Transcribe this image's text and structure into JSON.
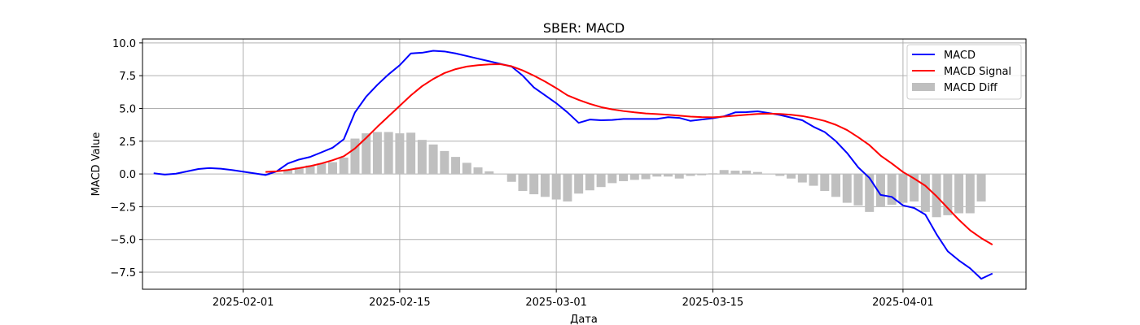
{
  "chart_data": {
    "type": "line",
    "title": "SBER: MACD",
    "xlabel": "Дата",
    "ylabel": "MACD Value",
    "x_tick_labels": [
      "2025-02-01",
      "2025-02-15",
      "2025-03-01",
      "2025-03-15",
      "2025-04-01"
    ],
    "x_tick_dates": [
      "2025-02-01",
      "2025-02-15",
      "2025-03-01",
      "2025-03-15",
      "2025-04-01"
    ],
    "xlim": [
      "2025-01-23",
      "2025-04-12"
    ],
    "ylim": [
      -8.8,
      10.3
    ],
    "y_ticks": [
      10.0,
      7.5,
      5.0,
      2.5,
      0.0,
      -2.5,
      -5.0,
      -7.5
    ],
    "y_tick_labels": [
      "10.0",
      "7.5",
      "5.0",
      "2.5",
      "0.0",
      "−2.5",
      "−5.0",
      "−7.5"
    ],
    "grid": true,
    "legend_position": "top-right",
    "series": [
      {
        "name": "MACD",
        "type": "line",
        "color": "#0000ff",
        "points": [
          [
            "2025-01-24",
            0.05
          ],
          [
            "2025-01-25",
            -0.05
          ],
          [
            "2025-01-26",
            0.02
          ],
          [
            "2025-01-27",
            0.2
          ],
          [
            "2025-01-28",
            0.38
          ],
          [
            "2025-01-29",
            0.45
          ],
          [
            "2025-01-30",
            0.4
          ],
          [
            "2025-01-31",
            0.3
          ],
          [
            "2025-02-03",
            -0.08
          ],
          [
            "2025-02-04",
            0.2
          ],
          [
            "2025-02-05",
            0.8
          ],
          [
            "2025-02-06",
            1.1
          ],
          [
            "2025-02-07",
            1.3
          ],
          [
            "2025-02-08",
            1.65
          ],
          [
            "2025-02-09",
            2.0
          ],
          [
            "2025-02-10",
            2.65
          ],
          [
            "2025-02-11",
            4.7
          ],
          [
            "2025-02-12",
            5.9
          ],
          [
            "2025-02-13",
            6.8
          ],
          [
            "2025-02-14",
            7.6
          ],
          [
            "2025-02-15",
            8.3
          ],
          [
            "2025-02-16",
            9.2
          ],
          [
            "2025-02-17",
            9.25
          ],
          [
            "2025-02-18",
            9.4
          ],
          [
            "2025-02-19",
            9.35
          ],
          [
            "2025-02-20",
            9.2
          ],
          [
            "2025-02-21",
            9.0
          ],
          [
            "2025-02-22",
            8.8
          ],
          [
            "2025-02-23",
            8.6
          ],
          [
            "2025-02-24",
            8.4
          ],
          [
            "2025-02-25",
            8.2
          ],
          [
            "2025-02-26",
            7.5
          ],
          [
            "2025-02-27",
            6.6
          ],
          [
            "2025-02-28",
            6.0
          ],
          [
            "2025-03-01",
            5.4
          ],
          [
            "2025-03-02",
            4.7
          ],
          [
            "2025-03-03",
            3.9
          ],
          [
            "2025-03-04",
            4.15
          ],
          [
            "2025-03-05",
            4.1
          ],
          [
            "2025-03-06",
            4.12
          ],
          [
            "2025-03-07",
            4.2
          ],
          [
            "2025-03-08",
            4.2
          ],
          [
            "2025-03-09",
            4.2
          ],
          [
            "2025-03-10",
            4.2
          ],
          [
            "2025-03-11",
            4.33
          ],
          [
            "2025-03-12",
            4.28
          ],
          [
            "2025-03-13",
            4.05
          ],
          [
            "2025-03-14",
            4.15
          ],
          [
            "2025-03-15",
            4.25
          ],
          [
            "2025-03-16",
            4.4
          ],
          [
            "2025-03-17",
            4.7
          ],
          [
            "2025-03-18",
            4.72
          ],
          [
            "2025-03-19",
            4.78
          ],
          [
            "2025-03-20",
            4.65
          ],
          [
            "2025-03-21",
            4.5
          ],
          [
            "2025-03-22",
            4.3
          ],
          [
            "2025-03-23",
            4.1
          ],
          [
            "2025-03-24",
            3.6
          ],
          [
            "2025-03-25",
            3.2
          ],
          [
            "2025-03-26",
            2.5
          ],
          [
            "2025-03-27",
            1.6
          ],
          [
            "2025-03-28",
            0.5
          ],
          [
            "2025-03-29",
            -0.3
          ],
          [
            "2025-03-30",
            -1.6
          ],
          [
            "2025-03-31",
            -1.75
          ],
          [
            "2025-04-01",
            -2.4
          ],
          [
            "2025-04-02",
            -2.6
          ],
          [
            "2025-04-03",
            -3.1
          ],
          [
            "2025-04-04",
            -4.6
          ],
          [
            "2025-04-05",
            -5.9
          ],
          [
            "2025-04-06",
            -6.6
          ],
          [
            "2025-04-07",
            -7.2
          ],
          [
            "2025-04-08",
            -8.0
          ],
          [
            "2025-04-09",
            -7.6
          ]
        ]
      },
      {
        "name": "MACD Signal",
        "type": "line",
        "color": "#ff0000",
        "points": [
          [
            "2025-02-03",
            0.15
          ],
          [
            "2025-02-04",
            0.2
          ],
          [
            "2025-02-05",
            0.3
          ],
          [
            "2025-02-06",
            0.45
          ],
          [
            "2025-02-07",
            0.6
          ],
          [
            "2025-02-08",
            0.8
          ],
          [
            "2025-02-09",
            1.05
          ],
          [
            "2025-02-10",
            1.35
          ],
          [
            "2025-02-11",
            1.95
          ],
          [
            "2025-02-12",
            2.75
          ],
          [
            "2025-02-13",
            3.6
          ],
          [
            "2025-02-14",
            4.4
          ],
          [
            "2025-02-15",
            5.2
          ],
          [
            "2025-02-16",
            6.0
          ],
          [
            "2025-02-17",
            6.7
          ],
          [
            "2025-02-18",
            7.25
          ],
          [
            "2025-02-19",
            7.7
          ],
          [
            "2025-02-20",
            8.0
          ],
          [
            "2025-02-21",
            8.2
          ],
          [
            "2025-02-22",
            8.3
          ],
          [
            "2025-02-23",
            8.36
          ],
          [
            "2025-02-24",
            8.38
          ],
          [
            "2025-02-25",
            8.22
          ],
          [
            "2025-02-26",
            7.9
          ],
          [
            "2025-02-27",
            7.5
          ],
          [
            "2025-02-28",
            7.05
          ],
          [
            "2025-03-01",
            6.55
          ],
          [
            "2025-03-02",
            6.0
          ],
          [
            "2025-03-03",
            5.65
          ],
          [
            "2025-03-04",
            5.35
          ],
          [
            "2025-03-05",
            5.1
          ],
          [
            "2025-03-06",
            4.93
          ],
          [
            "2025-03-07",
            4.8
          ],
          [
            "2025-03-08",
            4.7
          ],
          [
            "2025-03-09",
            4.62
          ],
          [
            "2025-03-10",
            4.57
          ],
          [
            "2025-03-11",
            4.52
          ],
          [
            "2025-03-12",
            4.45
          ],
          [
            "2025-03-13",
            4.38
          ],
          [
            "2025-03-14",
            4.34
          ],
          [
            "2025-03-15",
            4.32
          ],
          [
            "2025-03-16",
            4.38
          ],
          [
            "2025-03-17",
            4.45
          ],
          [
            "2025-03-18",
            4.52
          ],
          [
            "2025-03-19",
            4.58
          ],
          [
            "2025-03-20",
            4.6
          ],
          [
            "2025-03-21",
            4.58
          ],
          [
            "2025-03-22",
            4.52
          ],
          [
            "2025-03-23",
            4.42
          ],
          [
            "2025-03-24",
            4.25
          ],
          [
            "2025-03-25",
            4.05
          ],
          [
            "2025-03-26",
            3.75
          ],
          [
            "2025-03-27",
            3.35
          ],
          [
            "2025-03-28",
            2.8
          ],
          [
            "2025-03-29",
            2.2
          ],
          [
            "2025-03-30",
            1.4
          ],
          [
            "2025-03-31",
            0.8
          ],
          [
            "2025-04-01",
            0.15
          ],
          [
            "2025-04-02",
            -0.35
          ],
          [
            "2025-04-03",
            -0.9
          ],
          [
            "2025-04-04",
            -1.7
          ],
          [
            "2025-04-05",
            -2.6
          ],
          [
            "2025-04-06",
            -3.5
          ],
          [
            "2025-04-07",
            -4.3
          ],
          [
            "2025-04-08",
            -4.9
          ],
          [
            "2025-04-09",
            -5.4
          ]
        ]
      },
      {
        "name": "MACD Diff",
        "type": "bar",
        "color": "#bfbfbf",
        "points": [
          [
            "2025-02-03",
            -0.1
          ],
          [
            "2025-02-04",
            0.05
          ],
          [
            "2025-02-05",
            0.3
          ],
          [
            "2025-02-06",
            0.5
          ],
          [
            "2025-02-07",
            0.65
          ],
          [
            "2025-02-08",
            0.8
          ],
          [
            "2025-02-09",
            0.9
          ],
          [
            "2025-02-10",
            1.25
          ],
          [
            "2025-02-11",
            2.7
          ],
          [
            "2025-02-12",
            3.1
          ],
          [
            "2025-02-13",
            3.2
          ],
          [
            "2025-02-14",
            3.2
          ],
          [
            "2025-02-15",
            3.1
          ],
          [
            "2025-02-16",
            3.15
          ],
          [
            "2025-02-17",
            2.6
          ],
          [
            "2025-02-18",
            2.25
          ],
          [
            "2025-02-19",
            1.75
          ],
          [
            "2025-02-20",
            1.3
          ],
          [
            "2025-02-21",
            0.85
          ],
          [
            "2025-02-22",
            0.5
          ],
          [
            "2025-02-23",
            0.2
          ],
          [
            "2025-02-24",
            0.0
          ],
          [
            "2025-02-25",
            -0.6
          ],
          [
            "2025-02-26",
            -1.3
          ],
          [
            "2025-02-27",
            -1.55
          ],
          [
            "2025-02-28",
            -1.75
          ],
          [
            "2025-03-01",
            -1.95
          ],
          [
            "2025-03-02",
            -2.1
          ],
          [
            "2025-03-03",
            -1.5
          ],
          [
            "2025-03-04",
            -1.25
          ],
          [
            "2025-03-05",
            -1.0
          ],
          [
            "2025-03-06",
            -0.7
          ],
          [
            "2025-03-07",
            -0.55
          ],
          [
            "2025-03-08",
            -0.45
          ],
          [
            "2025-03-09",
            -0.4
          ],
          [
            "2025-03-10",
            -0.2
          ],
          [
            "2025-03-11",
            -0.2
          ],
          [
            "2025-03-12",
            -0.35
          ],
          [
            "2025-03-13",
            -0.15
          ],
          [
            "2025-03-14",
            -0.1
          ],
          [
            "2025-03-15",
            0.05
          ],
          [
            "2025-03-16",
            0.3
          ],
          [
            "2025-03-17",
            0.25
          ],
          [
            "2025-03-18",
            0.25
          ],
          [
            "2025-03-19",
            0.15
          ],
          [
            "2025-03-20",
            0.0
          ],
          [
            "2025-03-21",
            -0.15
          ],
          [
            "2025-03-22",
            -0.35
          ],
          [
            "2025-03-23",
            -0.65
          ],
          [
            "2025-03-24",
            -0.9
          ],
          [
            "2025-03-25",
            -1.3
          ],
          [
            "2025-03-26",
            -1.75
          ],
          [
            "2025-03-27",
            -2.2
          ],
          [
            "2025-03-28",
            -2.4
          ],
          [
            "2025-03-29",
            -2.9
          ],
          [
            "2025-03-30",
            -2.5
          ],
          [
            "2025-03-31",
            -2.35
          ],
          [
            "2025-04-01",
            -2.2
          ],
          [
            "2025-04-02",
            -2.1
          ],
          [
            "2025-04-03",
            -2.9
          ],
          [
            "2025-04-04",
            -3.3
          ],
          [
            "2025-04-05",
            -3.15
          ],
          [
            "2025-04-06",
            -3.0
          ],
          [
            "2025-04-07",
            -3.0
          ],
          [
            "2025-04-08",
            -2.1
          ]
        ]
      }
    ]
  }
}
